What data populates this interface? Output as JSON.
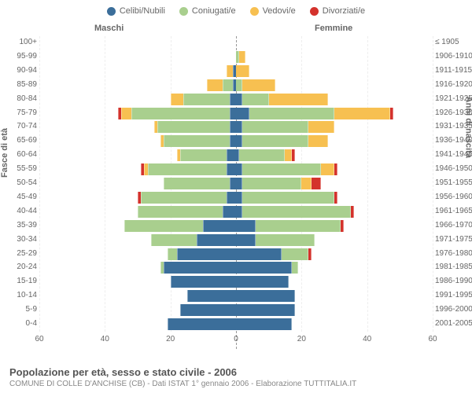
{
  "legend": [
    {
      "label": "Celibi/Nubili",
      "color": "#3b6e9a"
    },
    {
      "label": "Coniugati/e",
      "color": "#a9cf8e"
    },
    {
      "label": "Vedovi/e",
      "color": "#f7c051"
    },
    {
      "label": "Divorziati/e",
      "color": "#d4322c"
    }
  ],
  "header_m": "Maschi",
  "header_f": "Femmine",
  "axis_left_title": "Fasce di età",
  "axis_right_title": "Anni di nascita",
  "footer_title": "Popolazione per età, sesso e stato civile - 2006",
  "footer_sub": "COMUNE DI COLLE D'ANCHISE (CB) - Dati ISTAT 1° gennaio 2006 - Elaborazione TUTTITALIA.IT",
  "colors": {
    "single": "#3b6e9a",
    "married": "#a9cf8e",
    "widowed": "#f7c051",
    "divorced": "#d4322c",
    "grid": "#eeeeee",
    "center": "#999999",
    "bg": "#ffffff"
  },
  "chart": {
    "xmax": 60,
    "xticks": [
      60,
      40,
      20,
      0,
      20,
      40,
      60
    ],
    "row_height": 17.9,
    "rows": [
      {
        "age": "100+",
        "birth": "≤ 1905",
        "m": [
          0,
          0,
          0,
          0
        ],
        "f": [
          0,
          0,
          0,
          0
        ]
      },
      {
        "age": "95-99",
        "birth": "1906-1910",
        "m": [
          0,
          0,
          0,
          0
        ],
        "f": [
          0,
          1,
          2,
          0
        ]
      },
      {
        "age": "90-94",
        "birth": "1911-1915",
        "m": [
          1,
          0,
          2,
          0
        ],
        "f": [
          0,
          0,
          4,
          0
        ]
      },
      {
        "age": "85-89",
        "birth": "1916-1920",
        "m": [
          1,
          3,
          5,
          0
        ],
        "f": [
          0,
          2,
          10,
          0
        ]
      },
      {
        "age": "80-84",
        "birth": "1921-1925",
        "m": [
          2,
          14,
          4,
          0
        ],
        "f": [
          2,
          8,
          18,
          0
        ]
      },
      {
        "age": "75-79",
        "birth": "1926-1930",
        "m": [
          2,
          30,
          3,
          1
        ],
        "f": [
          4,
          26,
          17,
          1
        ]
      },
      {
        "age": "70-74",
        "birth": "1931-1935",
        "m": [
          2,
          22,
          1,
          0
        ],
        "f": [
          2,
          20,
          8,
          0
        ]
      },
      {
        "age": "65-69",
        "birth": "1936-1940",
        "m": [
          2,
          20,
          1,
          0
        ],
        "f": [
          2,
          20,
          6,
          0
        ]
      },
      {
        "age": "60-64",
        "birth": "1941-1945",
        "m": [
          3,
          14,
          1,
          0
        ],
        "f": [
          1,
          14,
          2,
          1
        ]
      },
      {
        "age": "55-59",
        "birth": "1946-1950",
        "m": [
          3,
          24,
          1,
          1
        ],
        "f": [
          2,
          24,
          4,
          1
        ]
      },
      {
        "age": "50-54",
        "birth": "1951-1955",
        "m": [
          2,
          20,
          0,
          0
        ],
        "f": [
          2,
          18,
          3,
          3
        ]
      },
      {
        "age": "45-49",
        "birth": "1956-1960",
        "m": [
          3,
          26,
          0,
          1
        ],
        "f": [
          2,
          28,
          0,
          1
        ]
      },
      {
        "age": "40-44",
        "birth": "1961-1965",
        "m": [
          4,
          26,
          0,
          0
        ],
        "f": [
          2,
          33,
          0,
          1
        ]
      },
      {
        "age": "35-39",
        "birth": "1966-1970",
        "m": [
          10,
          24,
          0,
          0
        ],
        "f": [
          6,
          26,
          0,
          1
        ]
      },
      {
        "age": "30-34",
        "birth": "1971-1975",
        "m": [
          12,
          14,
          0,
          0
        ],
        "f": [
          6,
          18,
          0,
          0
        ]
      },
      {
        "age": "25-29",
        "birth": "1976-1980",
        "m": [
          18,
          3,
          0,
          0
        ],
        "f": [
          14,
          8,
          0,
          1
        ]
      },
      {
        "age": "20-24",
        "birth": "1981-1985",
        "m": [
          22,
          1,
          0,
          0
        ],
        "f": [
          17,
          2,
          0,
          0
        ]
      },
      {
        "age": "15-19",
        "birth": "1986-1990",
        "m": [
          20,
          0,
          0,
          0
        ],
        "f": [
          16,
          0,
          0,
          0
        ]
      },
      {
        "age": "10-14",
        "birth": "1991-1995",
        "m": [
          15,
          0,
          0,
          0
        ],
        "f": [
          18,
          0,
          0,
          0
        ]
      },
      {
        "age": "5-9",
        "birth": "1996-2000",
        "m": [
          17,
          0,
          0,
          0
        ],
        "f": [
          18,
          0,
          0,
          0
        ]
      },
      {
        "age": "0-4",
        "birth": "2001-2005",
        "m": [
          21,
          0,
          0,
          0
        ],
        "f": [
          17,
          0,
          0,
          0
        ]
      }
    ]
  }
}
